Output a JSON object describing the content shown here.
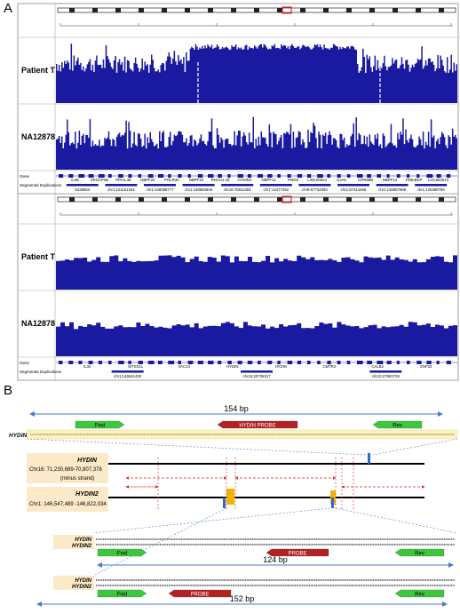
{
  "panel_a": {
    "label": "A",
    "view1": {
      "tracks": [
        "Patient T",
        "NA12878"
      ],
      "gene_header": "Gene",
      "segdup_header": "Segmental Duplications",
      "genes": [
        "IL4E",
        "SRGAP2B",
        "PPIAL4E",
        "NBPF20",
        "POLR3C",
        "NBPF10",
        "RNVU1-18",
        "HYDIN2",
        "NBPF12",
        "FMO5",
        "LINC00624",
        "GJA5",
        "GPR89B",
        "NBPF14",
        "PDE4DIP",
        "LOC653513"
      ],
      "segdups": [
        "5328663",
        "chr1:121151201",
        "chr1:148068777",
        "chr1:148682845",
        "chr16:70811383",
        "chr7:12477252",
        "chr9:67732093",
        "chr1:87414466",
        "chr1:148087669",
        "chr1:120480790"
      ]
    },
    "view2": {
      "tracks": [
        "Patient T",
        "NA12878"
      ],
      "gene_header": "Gene",
      "segdup_header": "Segmental Duplications",
      "genes": [
        "IL34",
        "MTSS1L",
        "VAC14",
        "HYDIN",
        "HYDIN",
        "CMTR2",
        "CALB2",
        "ZNF23"
      ],
      "segdups": [
        "chr1:146541420",
        "chr16:20735317",
        "chr10:27903729"
      ]
    }
  },
  "panel_b": {
    "label": "B",
    "top": {
      "length": "154 bp",
      "fwd": "Fwd",
      "probe": "HYDIN PROBE",
      "rev": "Rev",
      "gene": "HYDIN"
    },
    "hydin": {
      "name": "HYDIN",
      "coords": "Chr16: 71,230,689-70,807,378",
      "strand": "(minus strand)"
    },
    "hydin2": {
      "name": "HYDIN2",
      "coords": "Chr1: 146,547,489 -146,822,034"
    },
    "align1": {
      "genes": [
        "HYDIN",
        "HYDIN2"
      ],
      "fwd": "Fwd",
      "probe": "PROBE",
      "rev": "Rev",
      "length": "124 bp"
    },
    "align2": {
      "genes": [
        "HYDIN",
        "HYDIN2"
      ],
      "fwd": "Fwd",
      "probe": "PROBE",
      "rev": "Rev",
      "length": "152 bp"
    }
  }
}
